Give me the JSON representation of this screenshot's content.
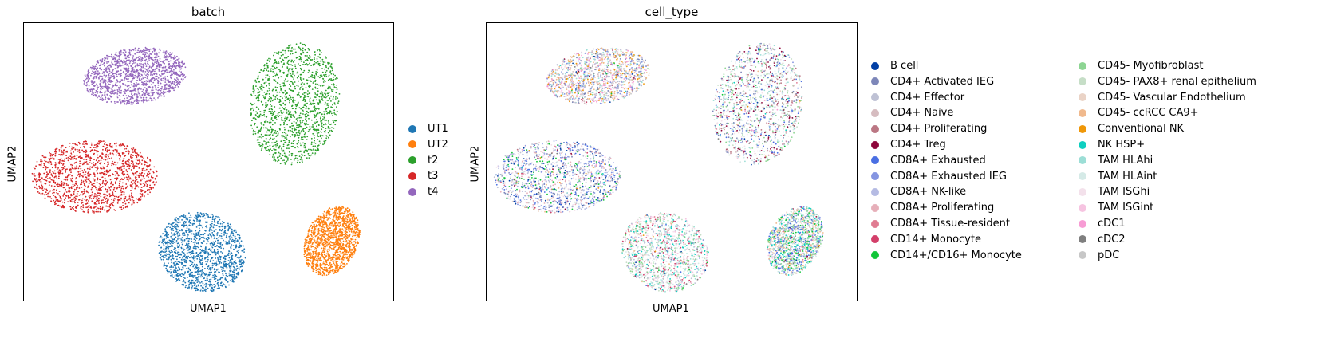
{
  "chart_data": [
    {
      "type": "scatter",
      "title": "batch",
      "xlabel": "UMAP1",
      "ylabel": "UMAP2",
      "legend_position": "right",
      "grid": false,
      "ticks": false,
      "series": [
        {
          "name": "UT1",
          "color": "#1f77b4"
        },
        {
          "name": "UT2",
          "color": "#ff7f0e"
        },
        {
          "name": "t2",
          "color": "#2ca02c"
        },
        {
          "name": "t3",
          "color": "#d62728"
        },
        {
          "name": "t4",
          "color": "#9467bd"
        }
      ],
      "clusters": [
        {
          "series": "t4",
          "cx": 0.3,
          "cy": 0.81,
          "rx": 0.14,
          "ry": 0.1,
          "rot": -8
        },
        {
          "series": "t2",
          "cx": 0.73,
          "cy": 0.71,
          "rx": 0.12,
          "ry": 0.22,
          "rot": 10
        },
        {
          "series": "t3",
          "cx": 0.19,
          "cy": 0.45,
          "rx": 0.17,
          "ry": 0.13,
          "rot": 0
        },
        {
          "series": "UT1",
          "cx": 0.48,
          "cy": 0.18,
          "rx": 0.12,
          "ry": 0.14,
          "rot": 25
        },
        {
          "series": "UT2",
          "cx": 0.83,
          "cy": 0.22,
          "rx": 0.07,
          "ry": 0.13,
          "rot": 25
        }
      ]
    },
    {
      "type": "scatter",
      "title": "cell_type",
      "xlabel": "UMAP1",
      "ylabel": "UMAP2",
      "legend_position": "right",
      "grid": false,
      "ticks": false,
      "series": [
        {
          "name": "B cell",
          "color": "#023fa5"
        },
        {
          "name": "CD4+ Activated IEG",
          "color": "#7d87b9"
        },
        {
          "name": "CD4+ Effector",
          "color": "#bec1d4"
        },
        {
          "name": "CD4+ Naive",
          "color": "#d6bcc0"
        },
        {
          "name": "CD4+ Proliferating",
          "color": "#bb7784"
        },
        {
          "name": "CD4+ Treg",
          "color": "#8e063b"
        },
        {
          "name": "CD8A+ Exhausted",
          "color": "#4a6fe3"
        },
        {
          "name": "CD8A+ Exhausted IEG",
          "color": "#8595e1"
        },
        {
          "name": "CD8A+ NK-like",
          "color": "#b5bbe3"
        },
        {
          "name": "CD8A+ Proliferating",
          "color": "#e6afb9"
        },
        {
          "name": "CD8A+ Tissue-resident",
          "color": "#e07b91"
        },
        {
          "name": "CD14+ Monocyte",
          "color": "#d33f6a"
        },
        {
          "name": "CD14+/CD16+ Monocyte",
          "color": "#11c638"
        },
        {
          "name": "CD45- Myofibroblast",
          "color": "#8dd593"
        },
        {
          "name": "CD45- PAX8+ renal epithelium",
          "color": "#c6dec7"
        },
        {
          "name": "CD45- Vascular Endothelium",
          "color": "#ead3c6"
        },
        {
          "name": "CD45- ccRCC CA9+",
          "color": "#f0b98d"
        },
        {
          "name": "Conventional NK",
          "color": "#ef9708"
        },
        {
          "name": "NK HSP+",
          "color": "#0fcfc0"
        },
        {
          "name": "TAM HLAhi",
          "color": "#9cded6"
        },
        {
          "name": "TAM HLAint",
          "color": "#d5eae7"
        },
        {
          "name": "TAM ISGhi",
          "color": "#f3e1eb"
        },
        {
          "name": "TAM ISGint",
          "color": "#f6c4e1"
        },
        {
          "name": "cDC1",
          "color": "#f79cd4"
        },
        {
          "name": "cDC2",
          "color": "#7f7f7f"
        },
        {
          "name": "pDC",
          "color": "#c7c7c7"
        }
      ]
    }
  ]
}
